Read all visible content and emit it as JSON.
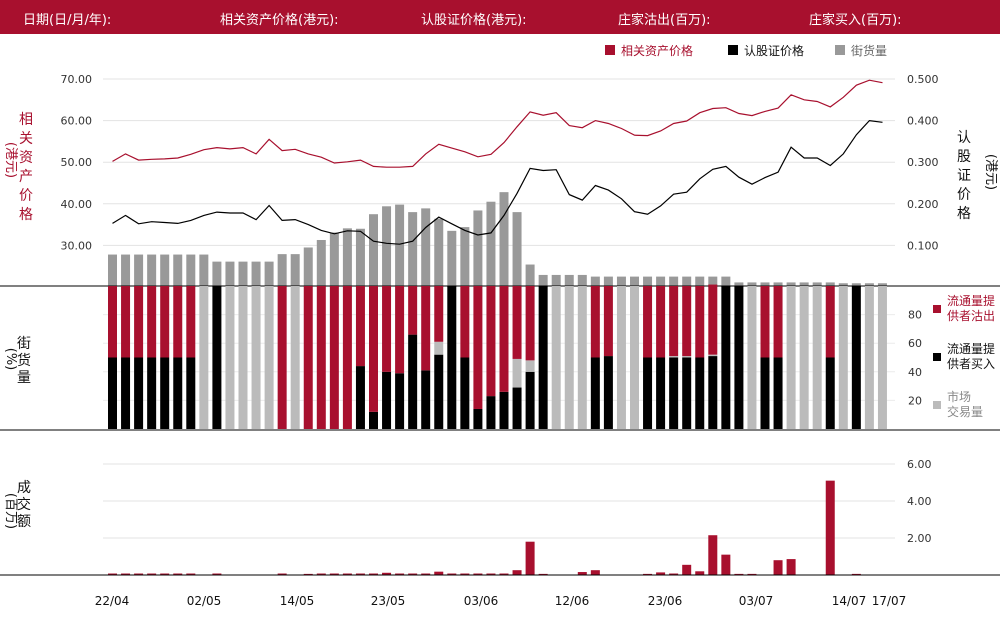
{
  "header": {
    "date": "日期(日/月/年):",
    "underlying": "相关资产价格(港元):",
    "warrant": "认股证价格(港元):",
    "lp_sell": "庄家沽出(百万):",
    "lp_buy": "庄家买入(百万):"
  },
  "colors": {
    "brand": "#a8102e",
    "black": "#000000",
    "grey": "#999999",
    "lightgrey": "#bbbbbb"
  },
  "chart_data": [
    {
      "type": "line",
      "legend": [
        "相关资产价格",
        "认股证价格",
        "街货量"
      ],
      "left_axis_label": [
        "相",
        "关",
        "资",
        "产",
        "价",
        "格"
      ],
      "left_axis_unit": "(港元)",
      "right_axis_label": [
        "认",
        "股",
        "证",
        "价",
        "格"
      ],
      "right_axis_unit": "(港元)",
      "left_ticks": [
        "70.00",
        "60.00",
        "50.00",
        "40.00",
        "30.00"
      ],
      "right_ticks": [
        "0.500",
        "0.400",
        "0.300",
        "0.200",
        "0.100"
      ],
      "ylim_left": [
        20,
        72
      ],
      "ylim_right": [
        0,
        0.52
      ],
      "series": [
        {
          "name": "相关资产价格",
          "axis": "left",
          "values": [
            50.2,
            52.0,
            50.5,
            50.7,
            50.8,
            51.0,
            51.9,
            53.0,
            53.5,
            53.2,
            53.5,
            52.0,
            55.5,
            52.8,
            53.1,
            52.0,
            51.2,
            49.8,
            50.1,
            50.5,
            49.0,
            48.8,
            48.8,
            49.0,
            52.0,
            54.3,
            53.4,
            52.5,
            51.3,
            51.9,
            54.7,
            58.5,
            62.1,
            61.3,
            61.9,
            58.8,
            58.3,
            60.0,
            59.3,
            58.1,
            56.5,
            56.4,
            57.5,
            59.3,
            59.9,
            61.9,
            62.9,
            63.1,
            61.7,
            61.2,
            62.2,
            63.0,
            66.2,
            65.0,
            64.6,
            63.3,
            65.6,
            68.5,
            69.7,
            69.1
          ]
        },
        {
          "name": "认股证价格",
          "axis": "right",
          "values": [
            0.153,
            0.172,
            0.152,
            0.157,
            0.155,
            0.153,
            0.16,
            0.172,
            0.18,
            0.178,
            0.178,
            0.162,
            0.196,
            0.16,
            0.162,
            0.15,
            0.136,
            0.128,
            0.135,
            0.134,
            0.11,
            0.105,
            0.103,
            0.11,
            0.143,
            0.168,
            0.152,
            0.136,
            0.125,
            0.13,
            0.172,
            0.225,
            0.285,
            0.28,
            0.282,
            0.222,
            0.209,
            0.244,
            0.233,
            0.212,
            0.181,
            0.175,
            0.195,
            0.223,
            0.228,
            0.26,
            0.283,
            0.29,
            0.264,
            0.247,
            0.263,
            0.276,
            0.336,
            0.31,
            0.31,
            0.292,
            0.32,
            0.366,
            0.4,
            0.396
          ]
        },
        {
          "name": "街货量",
          "axis": "left",
          "type": "bar",
          "values": [
            27.8,
            27.8,
            27.8,
            27.8,
            27.8,
            27.8,
            27.8,
            27.8,
            26.1,
            26.1,
            26.1,
            26.1,
            26.1,
            27.9,
            27.9,
            29.5,
            31.3,
            33.1,
            34.1,
            34.0,
            37.5,
            39.4,
            39.8,
            38.0,
            38.9,
            36.4,
            33.5,
            34.4,
            38.4,
            40.5,
            42.8,
            38.0,
            25.4,
            22.9,
            22.9,
            22.9,
            22.9,
            22.5,
            22.5,
            22.5,
            22.5,
            22.5,
            22.5,
            22.5,
            22.5,
            22.5,
            22.5,
            22.5,
            21.1,
            21.1,
            21.1,
            21.1,
            21.1,
            21.1,
            21.1,
            21.1,
            20.9,
            20.9,
            20.9,
            20.9
          ]
        }
      ]
    },
    {
      "type": "bar",
      "legend": [
        "流通量提供者沽出",
        "流通量提供者买入",
        "市场交易量"
      ],
      "y_axis_label": [
        "街",
        "货",
        "量"
      ],
      "y_axis_unit": "(%)",
      "right_ticks": [
        "80",
        "60",
        "40",
        "20"
      ],
      "ylim": [
        0,
        100
      ],
      "series": [
        {
          "name": "流通量提供者沽出",
          "values": [
            50,
            50,
            50,
            50,
            50,
            50,
            50,
            0,
            0,
            0,
            0,
            0,
            0,
            100,
            0,
            100,
            100,
            100,
            100,
            56,
            88,
            60,
            61,
            34,
            59,
            39,
            0,
            50,
            86,
            77,
            74,
            51,
            52,
            0,
            0,
            0,
            0,
            50,
            49,
            0,
            0,
            50,
            50,
            49,
            49,
            50,
            49,
            0,
            0,
            0,
            50,
            50,
            0,
            0,
            0,
            50,
            0,
            0,
            0,
            0
          ]
        },
        {
          "name": "流通量提供者买入",
          "values": [
            50,
            50,
            50,
            50,
            50,
            50,
            50,
            0,
            100,
            0,
            0,
            0,
            0,
            0,
            0,
            0,
            0,
            0,
            0,
            44,
            12,
            40,
            39,
            66,
            41,
            52,
            100,
            50,
            14,
            23,
            26,
            29,
            40,
            100,
            0,
            0,
            0,
            50,
            51,
            0,
            0,
            50,
            50,
            50,
            50,
            50,
            51,
            100,
            100,
            0,
            50,
            50,
            0,
            0,
            0,
            50,
            0,
            100,
            0,
            0
          ]
        },
        {
          "name": "市场交易量",
          "values": [
            0,
            0,
            0,
            0,
            0,
            0,
            0,
            100,
            0,
            100,
            100,
            100,
            100,
            0,
            100,
            0,
            0,
            0,
            0,
            0,
            0,
            0,
            0,
            0,
            0,
            9,
            0,
            0,
            0,
            0,
            0,
            20,
            8,
            0,
            100,
            100,
            100,
            0,
            0,
            100,
            100,
            0,
            0,
            1,
            1,
            0,
            1,
            0,
            0,
            100,
            0,
            0,
            100,
            100,
            100,
            0,
            100,
            0,
            100,
            100
          ]
        }
      ]
    },
    {
      "type": "bar",
      "y_axis_label": [
        "成",
        "交",
        "额"
      ],
      "y_axis_unit": "(百万)",
      "right_ticks": [
        "6.00",
        "4.00",
        "2.00"
      ],
      "ylim": [
        0,
        6.7
      ],
      "x_labels": [
        "22/04",
        "02/05",
        "14/05",
        "23/05",
        "03/06",
        "12/06",
        "23/06",
        "03/07",
        "14/07",
        "17/07"
      ],
      "series": [
        {
          "name": "成交额",
          "values": [
            0.08,
            0.08,
            0.08,
            0.08,
            0.08,
            0.08,
            0.08,
            0,
            0.08,
            0,
            0,
            0,
            0,
            0.08,
            0,
            0.06,
            0.08,
            0.08,
            0.08,
            0.08,
            0.08,
            0.12,
            0.08,
            0.08,
            0.08,
            0.18,
            0.08,
            0.08,
            0.08,
            0.08,
            0.08,
            0.26,
            1.8,
            0.06,
            0,
            0,
            0.16,
            0.26,
            0,
            0,
            0,
            0.06,
            0.14,
            0.08,
            0.55,
            0.2,
            2.15,
            1.1,
            0.06,
            0.06,
            0,
            0.8,
            0.86,
            0,
            0,
            5.1,
            0,
            0.06,
            0,
            0
          ]
        }
      ]
    }
  ]
}
